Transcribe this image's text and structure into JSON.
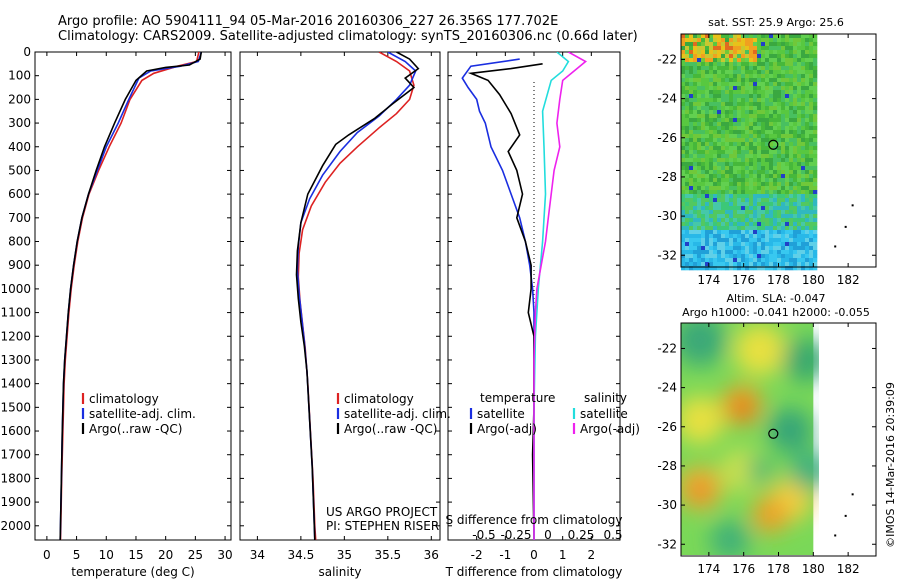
{
  "header": {
    "line1": "Argo profile: AO 5904111_94 05-Mar-2016 20160306_227 26.356S 177.702E",
    "line2": "Climatology: CARS2009. Satellite-adjusted climatology: synTS_20160306.nc (0.66d later)"
  },
  "colors": {
    "climatology": "#dd2222",
    "satellite_adj": "#1a2ee0",
    "argo": "#000000",
    "satellite_salinity": "#22dddd",
    "argo_adj_salinity": "#ee22ee"
  },
  "chart_data": [
    {
      "type": "line",
      "xlabel": "temperature (deg C)",
      "xlim": [
        -2,
        31
      ],
      "xticks": [
        0,
        5,
        10,
        15,
        20,
        25,
        30
      ],
      "ylim": [
        2060,
        0
      ],
      "yticks": [
        0,
        100,
        200,
        300,
        400,
        500,
        600,
        700,
        800,
        900,
        1000,
        1100,
        1200,
        1300,
        1400,
        1500,
        1600,
        1700,
        1800,
        1900,
        2000
      ],
      "legend": {
        "position": "lower-center",
        "entries": [
          "climatology",
          "satellite-adj. clim.",
          "Argo(..raw -QC)"
        ]
      },
      "series": [
        {
          "name": "climatology",
          "color": "#dd2222",
          "points": [
            [
              25.6,
              0
            ],
            [
              25.2,
              40
            ],
            [
              22,
              60
            ],
            [
              18,
              90
            ],
            [
              16,
              120
            ],
            [
              14,
              200
            ],
            [
              12.5,
              300
            ],
            [
              10.5,
              400
            ],
            [
              8.7,
              500
            ],
            [
              7.1,
              600
            ],
            [
              6,
              700
            ],
            [
              5.2,
              800
            ],
            [
              4.6,
              900
            ],
            [
              4.1,
              1000
            ],
            [
              3.7,
              1100
            ],
            [
              3.4,
              1200
            ],
            [
              3.1,
              1300
            ],
            [
              2.9,
              1400
            ],
            [
              2.7,
              1600
            ],
            [
              2.5,
              1800
            ],
            [
              2.35,
              2000
            ],
            [
              2.3,
              2060
            ]
          ]
        },
        {
          "name": "satellite-adj. clim.",
          "color": "#1a2ee0",
          "points": [
            [
              26,
              0
            ],
            [
              25.5,
              40
            ],
            [
              22.5,
              60
            ],
            [
              17.5,
              80
            ],
            [
              15.5,
              110
            ],
            [
              13.8,
              200
            ],
            [
              12,
              300
            ],
            [
              10,
              400
            ],
            [
              8.5,
              500
            ],
            [
              7,
              600
            ],
            [
              5.9,
              700
            ],
            [
              5.1,
              800
            ],
            [
              4.5,
              900
            ],
            [
              4,
              1000
            ],
            [
              3.6,
              1100
            ],
            [
              3.3,
              1200
            ],
            [
              3,
              1300
            ],
            [
              2.8,
              1400
            ],
            [
              2.6,
              1600
            ],
            [
              2.45,
              1800
            ],
            [
              2.3,
              2000
            ],
            [
              2.25,
              2060
            ]
          ]
        },
        {
          "name": "Argo(..raw -QC)",
          "color": "#000000",
          "points": [
            [
              26,
              0
            ],
            [
              25.8,
              30
            ],
            [
              24,
              55
            ],
            [
              20,
              65
            ],
            [
              16.8,
              80
            ],
            [
              15,
              120
            ],
            [
              13.2,
              200
            ],
            [
              11.4,
              300
            ],
            [
              9.7,
              400
            ],
            [
              8.3,
              500
            ],
            [
              7,
              600
            ],
            [
              5.9,
              700
            ],
            [
              5.1,
              800
            ],
            [
              4.5,
              900
            ],
            [
              4,
              1000
            ],
            [
              3.6,
              1100
            ],
            [
              3.3,
              1200
            ],
            [
              3,
              1300
            ],
            [
              2.8,
              1400
            ],
            [
              2.6,
              1600
            ],
            [
              2.45,
              1800
            ],
            [
              2.3,
              2000
            ],
            [
              2.25,
              2060
            ]
          ]
        }
      ]
    },
    {
      "type": "line",
      "xlabel": "salinity",
      "xlim": [
        33.8,
        36.1
      ],
      "xticks": [
        34,
        34.5,
        35,
        35.5,
        36
      ],
      "ylim": [
        2060,
        0
      ],
      "legend": {
        "position": "lower-center",
        "entries": [
          "climatology",
          "satellite-adj. clim.",
          "Argo(..raw -QC)"
        ]
      },
      "annotation": [
        "US ARGO PROJECT",
        "PI: STEPHEN RISER"
      ],
      "series": [
        {
          "name": "climatology",
          "color": "#dd2222",
          "points": [
            [
              35.4,
              0
            ],
            [
              35.6,
              40
            ],
            [
              35.75,
              80
            ],
            [
              35.8,
              140
            ],
            [
              35.75,
              200
            ],
            [
              35.6,
              260
            ],
            [
              35.4,
              320
            ],
            [
              35.15,
              400
            ],
            [
              34.95,
              470
            ],
            [
              34.78,
              550
            ],
            [
              34.62,
              650
            ],
            [
              34.52,
              750
            ],
            [
              34.48,
              850
            ],
            [
              34.47,
              950
            ],
            [
              34.49,
              1050
            ],
            [
              34.52,
              1150
            ],
            [
              34.55,
              1250
            ],
            [
              34.58,
              1400
            ],
            [
              34.61,
              1600
            ],
            [
              34.64,
              1800
            ],
            [
              34.66,
              2000
            ],
            [
              34.67,
              2060
            ]
          ]
        },
        {
          "name": "satellite-adj. clim.",
          "color": "#1a2ee0",
          "points": [
            [
              35.5,
              0
            ],
            [
              35.7,
              40
            ],
            [
              35.82,
              80
            ],
            [
              35.75,
              140
            ],
            [
              35.6,
              200
            ],
            [
              35.4,
              270
            ],
            [
              35.15,
              340
            ],
            [
              34.95,
              420
            ],
            [
              34.75,
              520
            ],
            [
              34.6,
              620
            ],
            [
              34.5,
              720
            ],
            [
              34.47,
              820
            ],
            [
              34.46,
              920
            ],
            [
              34.48,
              1020
            ],
            [
              34.51,
              1120
            ],
            [
              34.54,
              1220
            ],
            [
              34.57,
              1350
            ],
            [
              34.6,
              1550
            ],
            [
              34.63,
              1750
            ],
            [
              34.65,
              1950
            ],
            [
              34.66,
              2060
            ]
          ]
        },
        {
          "name": "Argo(..raw -QC)",
          "color": "#000000",
          "points": [
            [
              35.6,
              0
            ],
            [
              35.75,
              30
            ],
            [
              35.85,
              70
            ],
            [
              35.7,
              110
            ],
            [
              35.8,
              150
            ],
            [
              35.55,
              220
            ],
            [
              35.35,
              280
            ],
            [
              35.05,
              350
            ],
            [
              34.9,
              390
            ],
            [
              34.75,
              480
            ],
            [
              34.58,
              600
            ],
            [
              34.5,
              720
            ],
            [
              34.46,
              840
            ],
            [
              34.45,
              940
            ],
            [
              34.47,
              1040
            ],
            [
              34.5,
              1140
            ],
            [
              34.54,
              1240
            ],
            [
              34.57,
              1350
            ],
            [
              34.6,
              1550
            ],
            [
              34.63,
              1750
            ],
            [
              34.65,
              1950
            ],
            [
              34.66,
              2060
            ]
          ]
        }
      ]
    },
    {
      "type": "line",
      "xlabel": "T difference from climatology",
      "xlabel_top": "S difference from climatology",
      "xlim": [
        -3,
        3
      ],
      "xticks": [
        -2,
        -1,
        0,
        1,
        2
      ],
      "xticks_top_labels": [
        "-0.5",
        "-0.25",
        "0",
        "0.25",
        "0.5"
      ],
      "ylim": [
        2060,
        0
      ],
      "legend": {
        "position": "lower-center",
        "columns": [
          {
            "title": "temperature",
            "entries": [
              "satellite",
              "Argo(-adj)"
            ]
          },
          {
            "title": "salinity",
            "entries": [
              "satellite",
              "Argo(-adj)"
            ]
          }
        ]
      },
      "series": [
        {
          "name": "temperature satellite",
          "color": "#1a2ee0",
          "points": [
            [
              -0.5,
              30
            ],
            [
              -2.2,
              60
            ],
            [
              -2.5,
              110
            ],
            [
              -2.3,
              150
            ],
            [
              -2,
              200
            ],
            [
              -1.9,
              250
            ],
            [
              -1.7,
              300
            ],
            [
              -1.5,
              400
            ],
            [
              -1.1,
              500
            ],
            [
              -0.8,
              600
            ],
            [
              -0.5,
              700
            ],
            [
              -0.3,
              800
            ],
            [
              -0.15,
              900
            ],
            [
              -0.05,
              1000
            ],
            [
              0,
              1100
            ],
            [
              0,
              1300
            ],
            [
              0,
              2060
            ]
          ]
        },
        {
          "name": "temperature Argo(-adj)",
          "color": "#000000",
          "points": [
            [
              0.3,
              50
            ],
            [
              -0.8,
              70
            ],
            [
              -2.2,
              90
            ],
            [
              -1.6,
              120
            ],
            [
              -1.2,
              180
            ],
            [
              -0.8,
              260
            ],
            [
              -0.5,
              350
            ],
            [
              -0.9,
              420
            ],
            [
              -0.6,
              500
            ],
            [
              -0.4,
              600
            ],
            [
              -0.6,
              700
            ],
            [
              -0.3,
              800
            ],
            [
              -0.1,
              900
            ],
            [
              -0.1,
              1000
            ],
            [
              -0.2,
              1100
            ],
            [
              0,
              1200
            ],
            [
              0,
              1500
            ],
            [
              -0.05,
              1700
            ],
            [
              0,
              2060
            ]
          ]
        },
        {
          "name": "salinity satellite",
          "color": "#22dddd",
          "points": [
            [
              0.8,
              0
            ],
            [
              1.2,
              40
            ],
            [
              1,
              80
            ],
            [
              0.6,
              120
            ],
            [
              0.3,
              250
            ],
            [
              0.35,
              400
            ],
            [
              0.4,
              600
            ],
            [
              0.3,
              800
            ],
            [
              0.15,
              1000
            ],
            [
              0.05,
              1200
            ],
            [
              0,
              1500
            ],
            [
              0,
              2060
            ]
          ]
        },
        {
          "name": "salinity Argo(-adj)",
          "color": "#ee22ee",
          "points": [
            [
              1.2,
              0
            ],
            [
              1.8,
              40
            ],
            [
              1.4,
              80
            ],
            [
              1,
              120
            ],
            [
              0.9,
              200
            ],
            [
              0.8,
              300
            ],
            [
              0.9,
              400
            ],
            [
              0.7,
              500
            ],
            [
              0.6,
              600
            ],
            [
              0.5,
              700
            ],
            [
              0.4,
              800
            ],
            [
              0.25,
              900
            ],
            [
              0.1,
              1000
            ],
            [
              0.05,
              1100
            ],
            [
              0,
              1300
            ],
            [
              0,
              2060
            ]
          ]
        }
      ]
    },
    {
      "type": "heatmap",
      "title": "sat. SST: 25.9 Argo: 25.6",
      "xlim": [
        172.4,
        183.6
      ],
      "ylim": [
        -32.6,
        -20.7
      ],
      "xticks": [
        174,
        176,
        178,
        180,
        182
      ],
      "yticks": [
        -22,
        -24,
        -26,
        -28,
        -30,
        -32
      ],
      "marker": {
        "lon": 177.702,
        "lat": -26.356
      },
      "data_extent": {
        "lon": [
          172.4,
          180
        ],
        "lat": [
          -32.6,
          -20.7
        ]
      }
    },
    {
      "type": "heatmap",
      "title": "Altim. SLA: -0.047",
      "subtitle": "Argo h1000: -0.041 h2000: -0.055",
      "xlim": [
        172.4,
        183.6
      ],
      "ylim": [
        -32.6,
        -20.7
      ],
      "xticks": [
        174,
        176,
        178,
        180,
        182
      ],
      "yticks": [
        -22,
        -24,
        -26,
        -28,
        -30,
        -32
      ],
      "marker": {
        "lon": 177.702,
        "lat": -26.356
      },
      "data_extent": {
        "lon": [
          172.4,
          180
        ],
        "lat": [
          -32.6,
          -20.7
        ]
      }
    }
  ],
  "footer": {
    "credit": "©IMOS 14-Mar-2016 20:39:09"
  }
}
